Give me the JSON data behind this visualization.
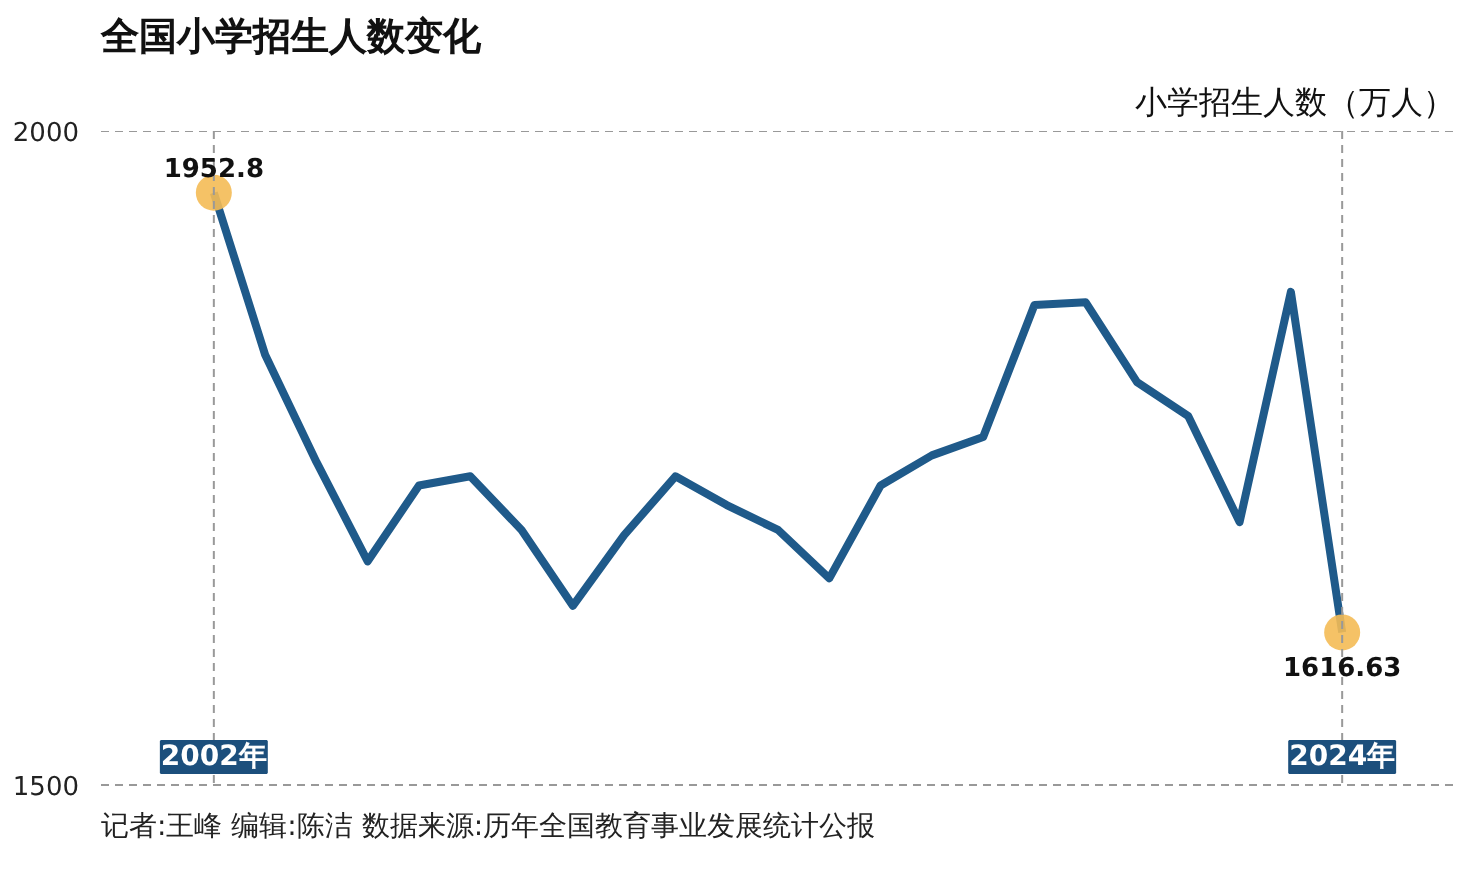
{
  "chart_data": {
    "type": "line",
    "title": "全国小学招生人数变化",
    "ylabel": "小学招生人数（万人）",
    "x": [
      2002,
      2003,
      2004,
      2005,
      2006,
      2007,
      2008,
      2009,
      2010,
      2011,
      2012,
      2013,
      2014,
      2015,
      2016,
      2017,
      2018,
      2019,
      2020,
      2021,
      2022,
      2023,
      2024
    ],
    "series": [
      {
        "color": "#1f5a8a",
        "values": [
          1952.8,
          1829,
          1747,
          1671,
          1729,
          1736,
          1695,
          1637,
          1691,
          1736,
          1714,
          1695,
          1658,
          1729,
          1752,
          1766,
          1867,
          1869,
          1808,
          1782,
          1701,
          1877,
          1616.63
        ]
      },
      {
        "type": "scatter",
        "color": "#f4bb55",
        "x": [
          2002,
          2024
        ],
        "values": [
          1952.8,
          1616.63
        ],
        "value_labels": [
          "1952.8",
          "1616.63"
        ]
      }
    ],
    "xlim": [
      1999.8,
      2026.2
    ],
    "ylim": [
      1500,
      2000
    ],
    "xticks": [
      {
        "value": 2002,
        "label": "2002年"
      },
      {
        "value": 2024,
        "label": "2024年"
      }
    ],
    "yticks": [
      1500,
      2000
    ],
    "grid": true,
    "line_style": "solid",
    "annotations": [
      "记者:王峰  编辑:陈洁  数据来源:历年全国教育事业发展统计公报"
    ]
  }
}
